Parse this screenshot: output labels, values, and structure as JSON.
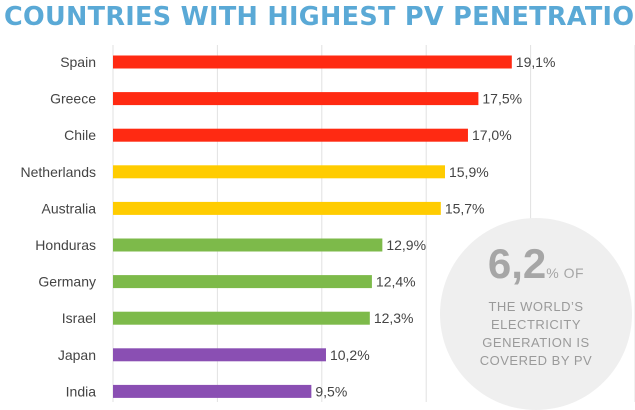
{
  "title": "COUNTRIES WITH HIGHEST PV PENETRATION",
  "colors": {
    "title": "#5aa9d6",
    "red": "#ff2a12",
    "yellow": "#ffcc00",
    "green": "#7dba4a",
    "purple": "#8a4fb3",
    "label": "#444444",
    "grid": "#e2e2e2"
  },
  "chart_data": {
    "type": "bar",
    "orientation": "horizontal",
    "categories": [
      "Spain",
      "Greece",
      "Chile",
      "Netherlands",
      "Australia",
      "Honduras",
      "Germany",
      "Israel",
      "Japan",
      "India"
    ],
    "values": [
      19.1,
      17.5,
      17.0,
      15.9,
      15.7,
      12.9,
      12.4,
      12.3,
      10.2,
      9.5
    ],
    "value_labels": [
      "19,1%",
      "17,5%",
      "17,0%",
      "15,9%",
      "15,7%",
      "12,9%",
      "12,4%",
      "12,3%",
      "10,2%",
      "9,5%"
    ],
    "bar_colors": [
      "red",
      "red",
      "red",
      "yellow",
      "yellow",
      "green",
      "green",
      "green",
      "purple",
      "purple"
    ],
    "xlim": [
      0,
      25
    ],
    "grid": true
  },
  "callout": {
    "value": "6,2",
    "suffix": "% OF",
    "lines": [
      "THE WORLD’S",
      "ELECTRICITY",
      "GENERATION IS",
      "COVERED BY PV"
    ]
  }
}
